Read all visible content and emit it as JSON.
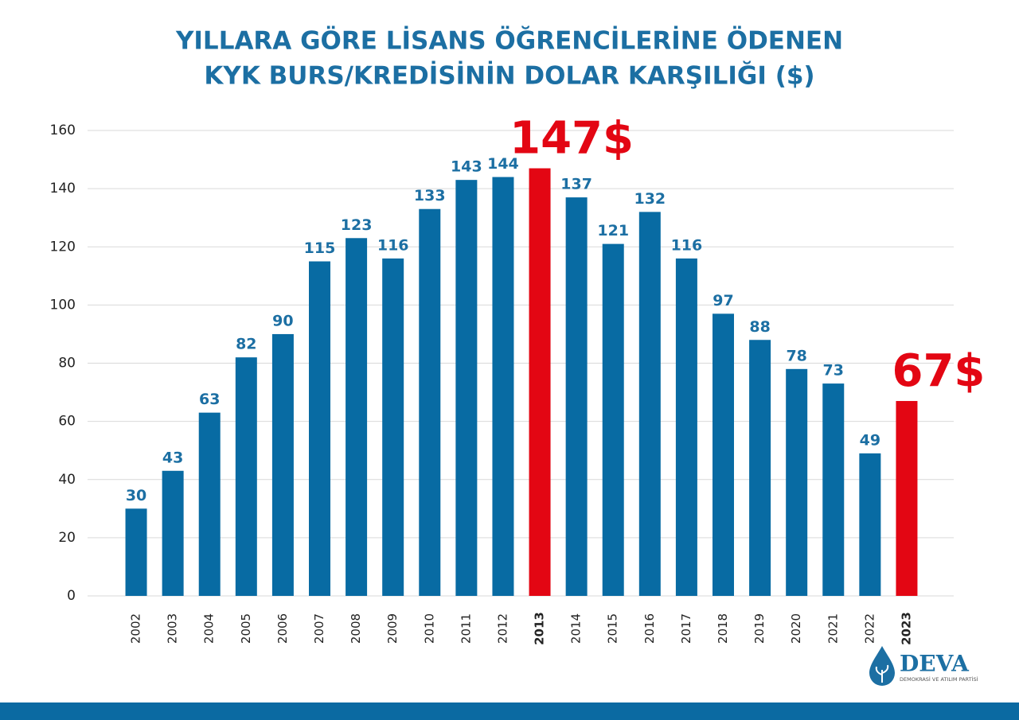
{
  "chart_data": {
    "type": "bar",
    "title": [
      "YILLARA GÖRE LİSANS ÖĞRENCİLERİNE ÖDENEN",
      "KYK BURS/KREDİSİNİN DOLAR KARŞILIĞI ($)"
    ],
    "categories": [
      "2002",
      "2003",
      "2004",
      "2005",
      "2006",
      "2007",
      "2008",
      "2009",
      "2010",
      "2011",
      "2012",
      "2013",
      "2014",
      "2015",
      "2016",
      "2017",
      "2018",
      "2019",
      "2020",
      "2021",
      "2022",
      "2023"
    ],
    "values": [
      30,
      43,
      63,
      82,
      90,
      115,
      123,
      116,
      133,
      143,
      144,
      147,
      137,
      121,
      132,
      116,
      97,
      88,
      78,
      73,
      49,
      67
    ],
    "value_labels": [
      "30",
      "43",
      "63",
      "82",
      "90",
      "115",
      "123",
      "116",
      "133",
      "143",
      "144",
      "147$",
      "137",
      "121",
      "132",
      "116",
      "97",
      "88",
      "78",
      "73",
      "49",
      "67$"
    ],
    "color": "#086ba3",
    "colors": [
      "#086ba3",
      "#086ba3",
      "#086ba3",
      "#086ba3",
      "#086ba3",
      "#086ba3",
      "#086ba3",
      "#086ba3",
      "#086ba3",
      "#086ba3",
      "#086ba3",
      "#e30613",
      "#086ba3",
      "#086ba3",
      "#086ba3",
      "#086ba3",
      "#086ba3",
      "#086ba3",
      "#086ba3",
      "#086ba3",
      "#086ba3",
      "#e30613"
    ],
    "ylim": [
      0,
      160
    ],
    "yticks": [
      0,
      20,
      40,
      60,
      80,
      100,
      120,
      140,
      160
    ],
    "grid": true
  },
  "logo": {
    "name": "DEVA",
    "subtitle": "DEMOKRASİ VE ATILIM PARTİSİ"
  }
}
